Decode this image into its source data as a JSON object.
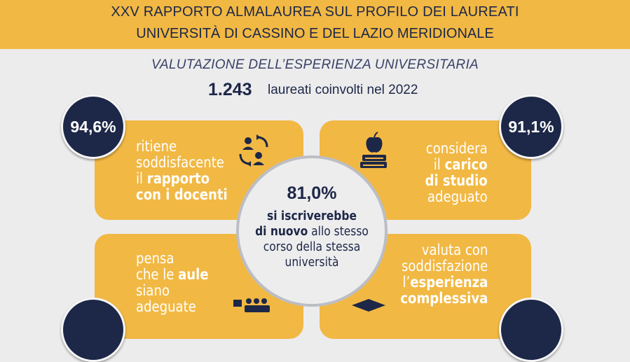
{
  "header": {
    "line1": "XXV RAPPORTO ALMALAUREA SUL PROFILO DEI LAUREATI",
    "line2": "UNIVERSITÀ DI CASSINO E DEL LAZIO MERIDIONALE"
  },
  "subtitle": "VALUTAZIONE DELL’ESPERIENZA UNIVERSITARIA",
  "graduates": {
    "count": "1.243",
    "text": "laureati coinvolti nel 2022"
  },
  "colors": {
    "accent": "#f1b843",
    "navy": "#1d2747",
    "background": "#ececed"
  },
  "cards": {
    "teachers": {
      "pct": "94,6%",
      "l1": "ritiene",
      "l2": "soddisfacente",
      "l3": "il ",
      "l3b": "rapporto",
      "l4b": "con i docenti",
      "icon": "people-exchange-icon"
    },
    "workload": {
      "pct": "91,1%",
      "l1": "considera",
      "l2": "il ",
      "l2b": "carico",
      "l3b": "di studio",
      "l4": "adeguato",
      "icon": "books-apple-icon"
    },
    "classrooms": {
      "l1": "pensa",
      "l2": "che le ",
      "l2b": "aule",
      "l3": "siano",
      "l4": "adeguate",
      "icon": "classroom-icon"
    },
    "experience": {
      "l1": "valuta con",
      "l2": "soddisfazione",
      "l3": "l’",
      "l3b": "esperienza",
      "l4b": "complessiva",
      "icon": "graduation-cap-icon"
    }
  },
  "center": {
    "pct": "81,0%",
    "l1b": "si iscriverebbe",
    "l2b": "di nuovo",
    "l2": " allo stesso",
    "l3": "corso della stessa",
    "l4": "università"
  }
}
